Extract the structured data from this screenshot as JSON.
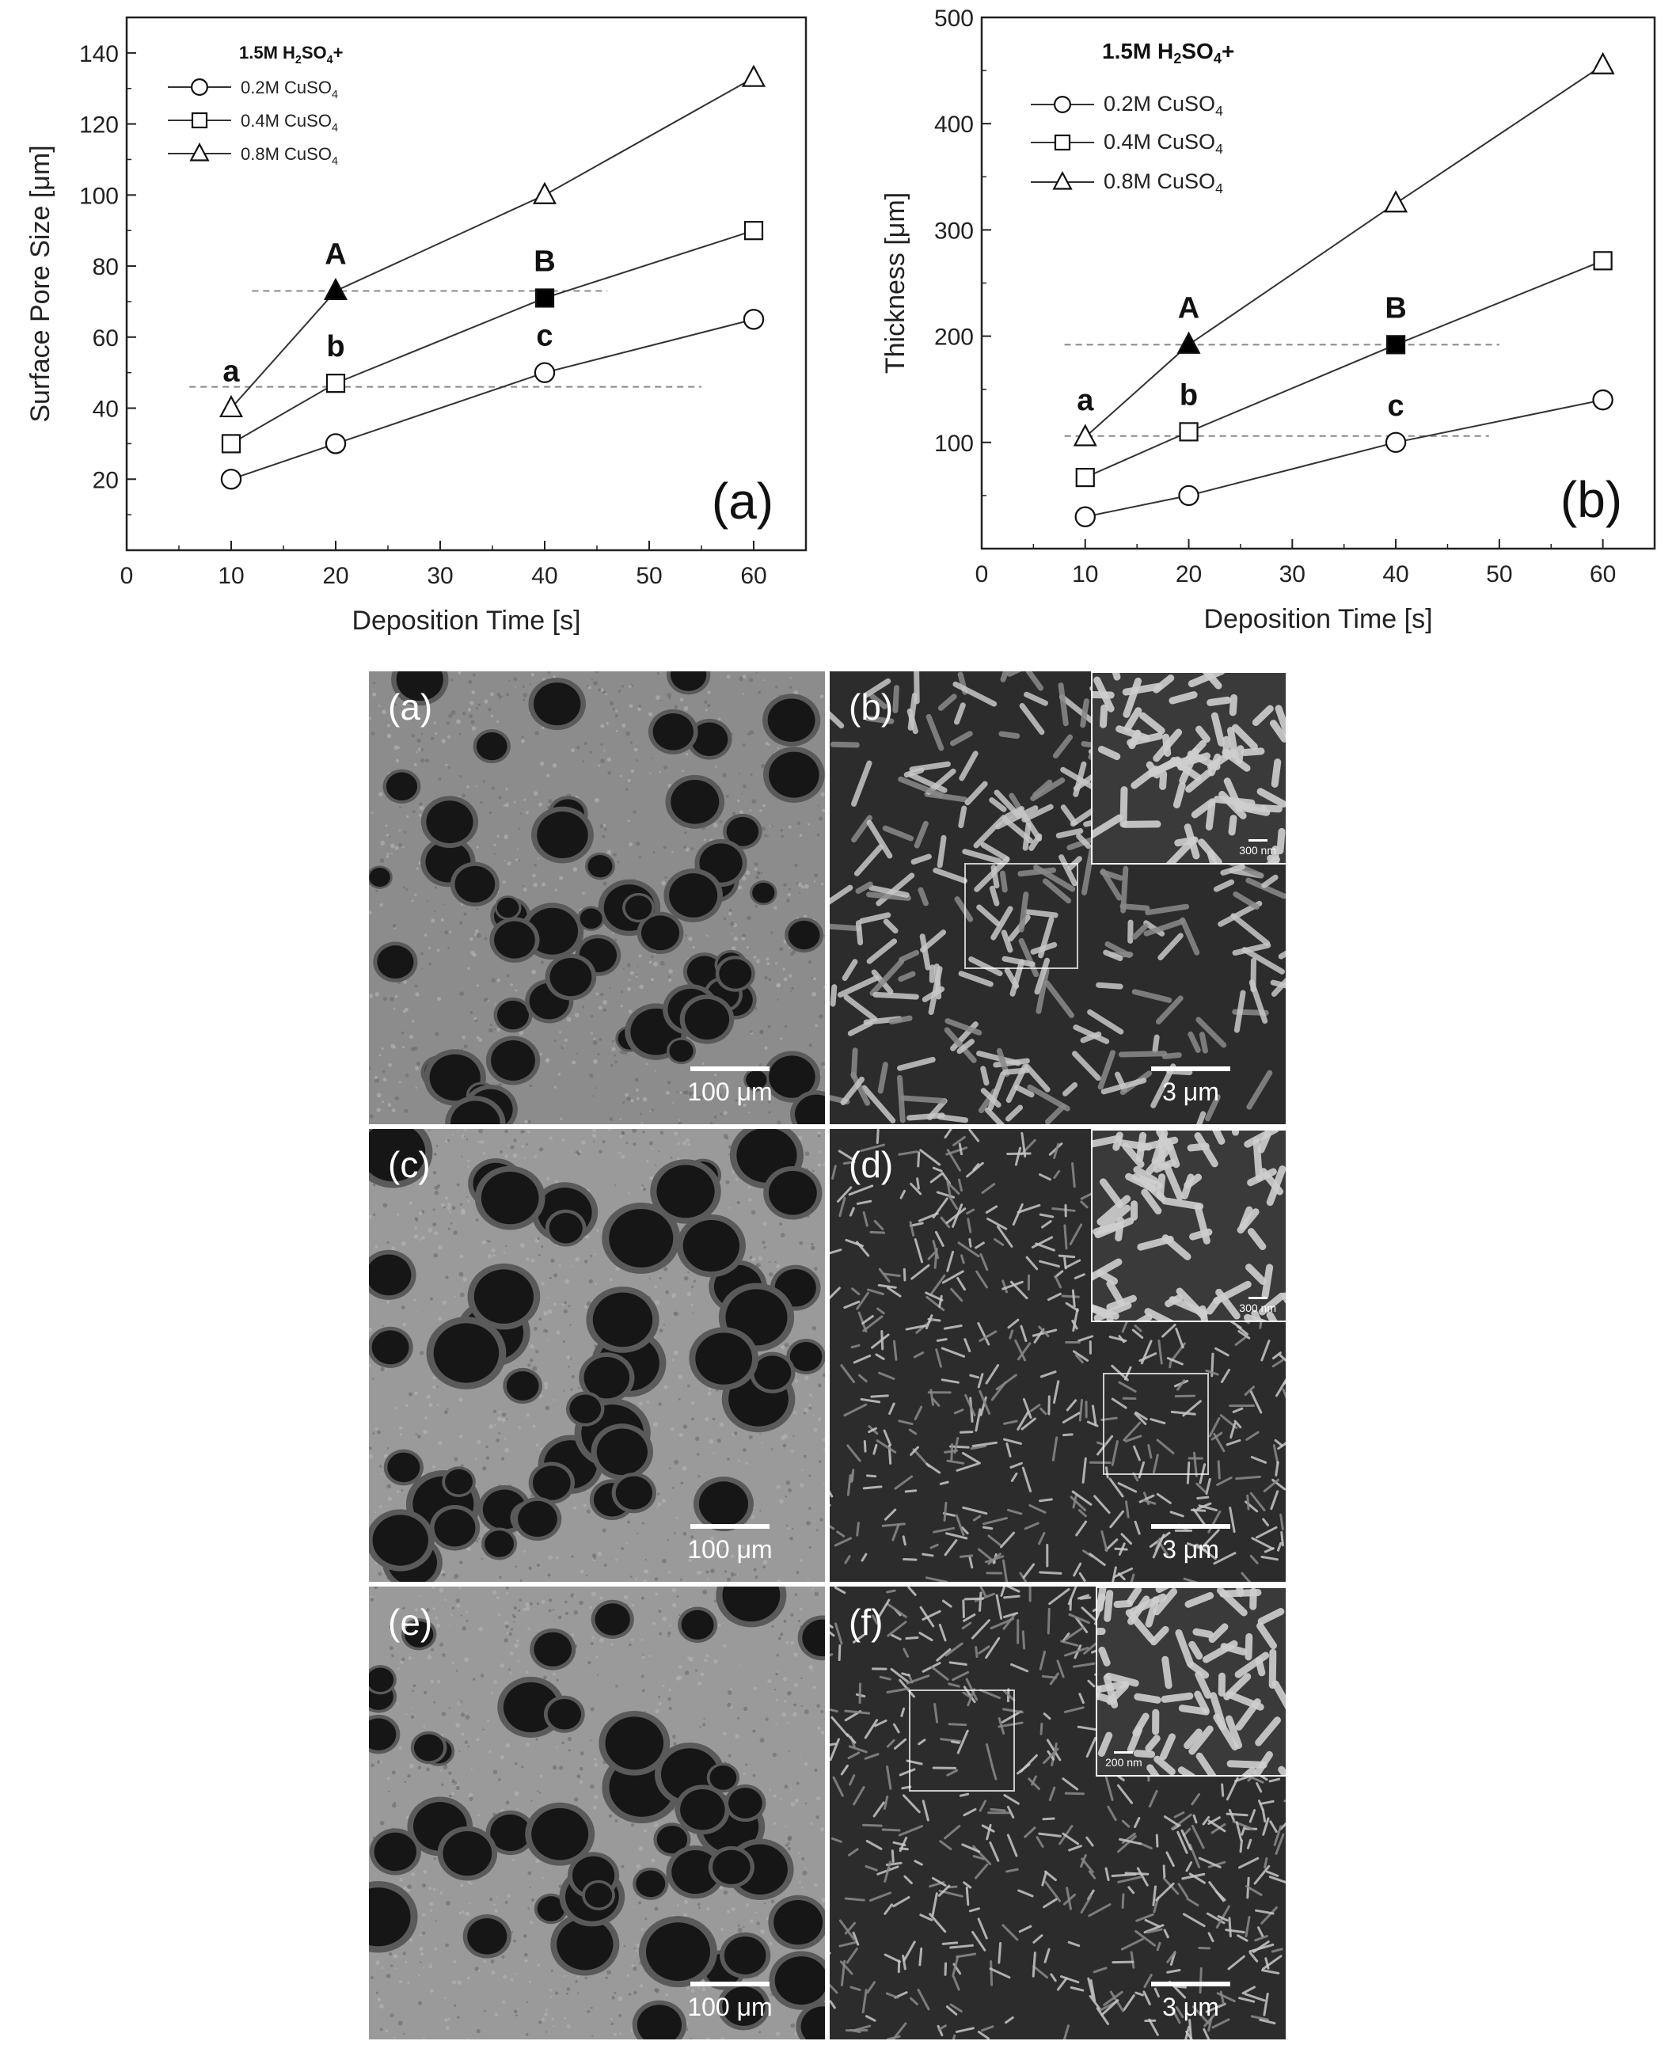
{
  "chart_data": [
    {
      "type": "line",
      "panel_label": "(a)",
      "xlabel": "Deposition Time [s]",
      "ylabel": "Surface Pore Size [μm]",
      "xlim": [
        0,
        65
      ],
      "ylim": [
        0,
        150
      ],
      "xticks": [
        0,
        10,
        20,
        30,
        40,
        50,
        60
      ],
      "yticks": [
        20,
        40,
        60,
        80,
        100,
        120,
        140
      ],
      "legend": {
        "title": "1.5M H₂SO₄+",
        "placement": "top-left",
        "entries": [
          "0.2M CuSO₄",
          "0.4M CuSO₄",
          "0.8M CuSO₄"
        ]
      },
      "series": [
        {
          "name": "0.2M CuSO₄",
          "marker": "circle",
          "x": [
            10,
            20,
            40,
            60
          ],
          "y": [
            20,
            30,
            50,
            65
          ]
        },
        {
          "name": "0.4M CuSO₄",
          "marker": "square",
          "x": [
            10,
            20,
            40,
            60
          ],
          "y": [
            30,
            47,
            71,
            90
          ]
        },
        {
          "name": "0.8M CuSO₄",
          "marker": "triangle",
          "x": [
            10,
            20,
            40,
            60
          ],
          "y": [
            40,
            73,
            100,
            133
          ]
        }
      ],
      "highlights": [
        {
          "series": 2,
          "point": 1,
          "label": "A"
        },
        {
          "series": 1,
          "point": 2,
          "label": "B"
        }
      ],
      "point_labels": [
        {
          "series": 2,
          "point": 0,
          "label": "a"
        },
        {
          "series": 1,
          "point": 1,
          "label": "b"
        },
        {
          "series": 0,
          "point": 2,
          "label": "c"
        }
      ],
      "reference_lines": [
        {
          "y": 73,
          "x": [
            12,
            46
          ]
        },
        {
          "y": 46,
          "x": [
            6,
            55
          ]
        }
      ]
    },
    {
      "type": "line",
      "panel_label": "(b)",
      "xlabel": "Deposition Time [s]",
      "ylabel": "Thickness [μm]",
      "xlim": [
        0,
        65
      ],
      "ylim": [
        0,
        500
      ],
      "xticks": [
        0,
        10,
        20,
        30,
        40,
        50,
        60
      ],
      "yticks": [
        100,
        200,
        300,
        400,
        500
      ],
      "legend": {
        "title": "1.5M H₂SO₄+",
        "placement": "top-left",
        "entries": [
          "0.2M CuSO₄",
          "0.4M CuSO₄",
          "0.8M CuSO₄"
        ]
      },
      "series": [
        {
          "name": "0.2M CuSO₄",
          "marker": "circle",
          "x": [
            10,
            20,
            40,
            60
          ],
          "y": [
            30,
            50,
            100,
            140
          ]
        },
        {
          "name": "0.4M CuSO₄",
          "marker": "square",
          "x": [
            10,
            20,
            40,
            60
          ],
          "y": [
            67,
            110,
            192,
            271
          ]
        },
        {
          "name": "0.8M CuSO₄",
          "marker": "triangle",
          "x": [
            10,
            20,
            40,
            60
          ],
          "y": [
            105,
            192,
            325,
            455
          ]
        }
      ],
      "highlights": [
        {
          "series": 2,
          "point": 1,
          "label": "A"
        },
        {
          "series": 1,
          "point": 2,
          "label": "B"
        }
      ],
      "point_labels": [
        {
          "series": 2,
          "point": 0,
          "label": "a"
        },
        {
          "series": 1,
          "point": 1,
          "label": "b"
        },
        {
          "series": 0,
          "point": 2,
          "label": "c"
        }
      ],
      "reference_lines": [
        {
          "y": 192,
          "x": [
            8,
            50
          ]
        },
        {
          "y": 106,
          "x": [
            8,
            49
          ]
        }
      ]
    }
  ],
  "micrographs": [
    {
      "label": "(a)",
      "scale": "100 μm",
      "kind": "pores",
      "inset": null
    },
    {
      "label": "(b)",
      "scale": "3 μm",
      "kind": "dendrite",
      "inset": {
        "scale": "300 nm"
      }
    },
    {
      "label": "(c)",
      "scale": "100 μm",
      "kind": "pores",
      "inset": null
    },
    {
      "label": "(d)",
      "scale": "3 μm",
      "kind": "dendrite",
      "inset": {
        "scale": "300 nm"
      }
    },
    {
      "label": "(e)",
      "scale": "100 μm",
      "kind": "pores",
      "inset": null
    },
    {
      "label": "(f)",
      "scale": "3 μm",
      "kind": "dendrite",
      "inset": {
        "scale": "200 nm"
      }
    }
  ]
}
